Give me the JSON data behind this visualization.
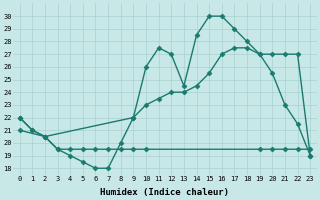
{
  "line1_x": [
    0,
    1,
    2,
    3,
    4,
    5,
    6,
    7,
    8,
    9,
    10,
    11,
    12,
    13,
    14,
    15,
    16,
    17,
    18,
    19,
    20,
    21,
    22,
    23
  ],
  "line1_y": [
    22,
    21,
    20.5,
    19.5,
    19,
    18.5,
    18,
    18,
    20,
    22,
    26,
    27.5,
    27,
    24.5,
    28.5,
    30,
    30,
    29,
    28,
    27,
    25.5,
    23,
    21.5,
    19
  ],
  "line2_x": [
    0,
    1,
    2,
    9,
    10,
    11,
    12,
    13,
    14,
    15,
    16,
    17,
    18,
    19,
    20,
    21,
    22,
    23
  ],
  "line2_y": [
    22,
    21,
    20.5,
    22,
    23,
    23.5,
    24,
    24,
    24.5,
    25.5,
    27,
    27.5,
    27.5,
    27,
    27,
    27,
    27,
    19
  ],
  "line3_x": [
    0,
    2,
    3,
    4,
    5,
    6,
    7,
    8,
    9,
    10,
    19,
    20,
    21,
    22,
    23
  ],
  "line3_y": [
    21,
    20.5,
    19.5,
    19.5,
    19.5,
    19.5,
    19.5,
    19.5,
    19.5,
    19.5,
    19.5,
    19.5,
    19.5,
    19.5,
    19.5
  ],
  "color": "#1a7a6e",
  "bg_color": "#c8e8e8",
  "grid_color": "#a8d0d0",
  "xlabel": "Humidex (Indice chaleur)",
  "xlim": [
    -0.5,
    23.5
  ],
  "ylim": [
    17.5,
    31
  ],
  "xticks": [
    0,
    1,
    2,
    3,
    4,
    5,
    6,
    7,
    8,
    9,
    10,
    11,
    12,
    13,
    14,
    15,
    16,
    17,
    18,
    19,
    20,
    21,
    22,
    23
  ],
  "yticks": [
    18,
    19,
    20,
    21,
    22,
    23,
    24,
    25,
    26,
    27,
    28,
    29,
    30
  ],
  "markersize": 2.5,
  "linewidth": 1.0
}
